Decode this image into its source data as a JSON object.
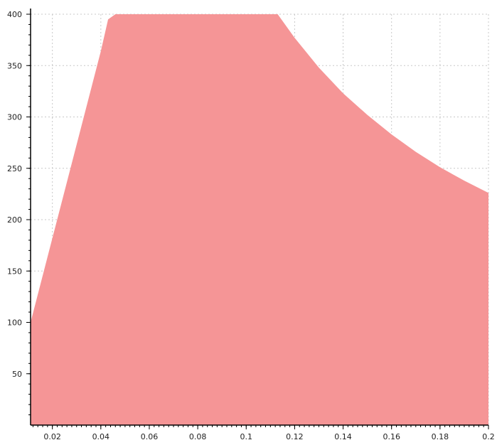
{
  "chart_data": {
    "type": "area",
    "title": "",
    "xlabel": "",
    "ylabel": "",
    "xlim": [
      0.011,
      0.2
    ],
    "ylim": [
      0,
      400
    ],
    "grid": true,
    "fill_color": "#f59596",
    "x_ticks": [
      0.02,
      0.04,
      0.06,
      0.08,
      0.1,
      0.12,
      0.14,
      0.16,
      0.18,
      0.2
    ],
    "x_tick_labels": [
      "0.02",
      "0.04",
      "0.06",
      "0.08",
      "0.1",
      "0.12",
      "0.14",
      "0.16",
      "0.18",
      "0.2"
    ],
    "y_ticks": [
      50,
      100,
      150,
      200,
      250,
      300,
      350,
      400
    ],
    "y_tick_labels": [
      "50",
      "100",
      "150",
      "200",
      "250",
      "300",
      "350",
      "400"
    ],
    "series": [
      {
        "x": [
          0.011,
          0.02,
          0.03,
          0.04,
          0.043,
          0.046,
          0.06,
          0.08,
          0.1,
          0.113,
          0.12,
          0.13,
          0.14,
          0.15,
          0.16,
          0.17,
          0.18,
          0.19,
          0.2
        ],
        "y": [
          100,
          182,
          273,
          364,
          395,
          400,
          400,
          400,
          400,
          400,
          377,
          348,
          323,
          302,
          283,
          266,
          251,
          238,
          226
        ]
      }
    ]
  }
}
